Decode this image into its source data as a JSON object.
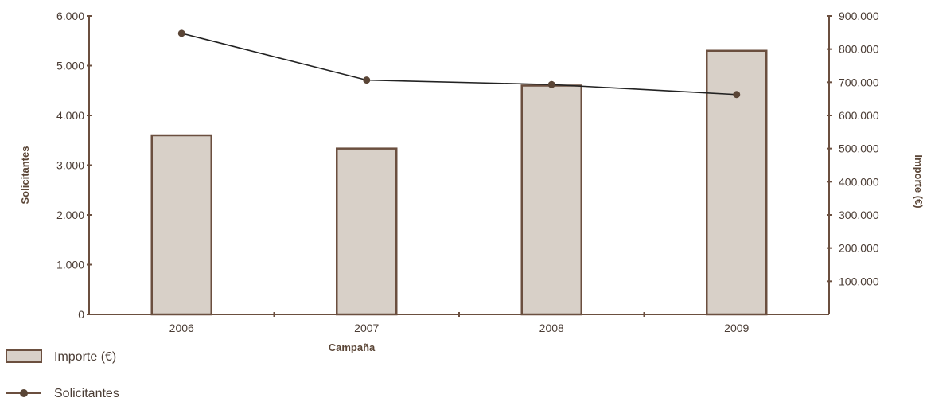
{
  "chart_data": {
    "type": "bar",
    "categories": [
      "2006",
      "2007",
      "2008",
      "2009"
    ],
    "series": [
      {
        "name": "Importe (€)",
        "type": "bar",
        "axis": "right",
        "values": [
          540000,
          500000,
          690000,
          795000
        ]
      },
      {
        "name": "Solicitantes",
        "type": "line",
        "axis": "left",
        "values": [
          5650,
          4710,
          4620,
          4420
        ]
      }
    ],
    "xlabel": "Campaña",
    "ylabel": "Solicitantes",
    "y2label": "Importe (€)",
    "ylim": [
      0,
      6000
    ],
    "y2lim": [
      0,
      900000
    ],
    "yticks": [
      "0",
      "1.000",
      "2.000",
      "3.000",
      "4.000",
      "5.000",
      "6.000"
    ],
    "y2ticks": [
      "100.000",
      "200.000",
      "300.000",
      "400.000",
      "500.000",
      "600.000",
      "700.000",
      "800.000",
      "900.000"
    ],
    "grid": false,
    "legend_position": "bottom-left",
    "colors": {
      "bar_fill": "#d8d0c8",
      "bar_stroke": "#6b4f3f",
      "line": "#222222",
      "marker": "#5a4536",
      "axis": "#6b4f3f"
    }
  }
}
